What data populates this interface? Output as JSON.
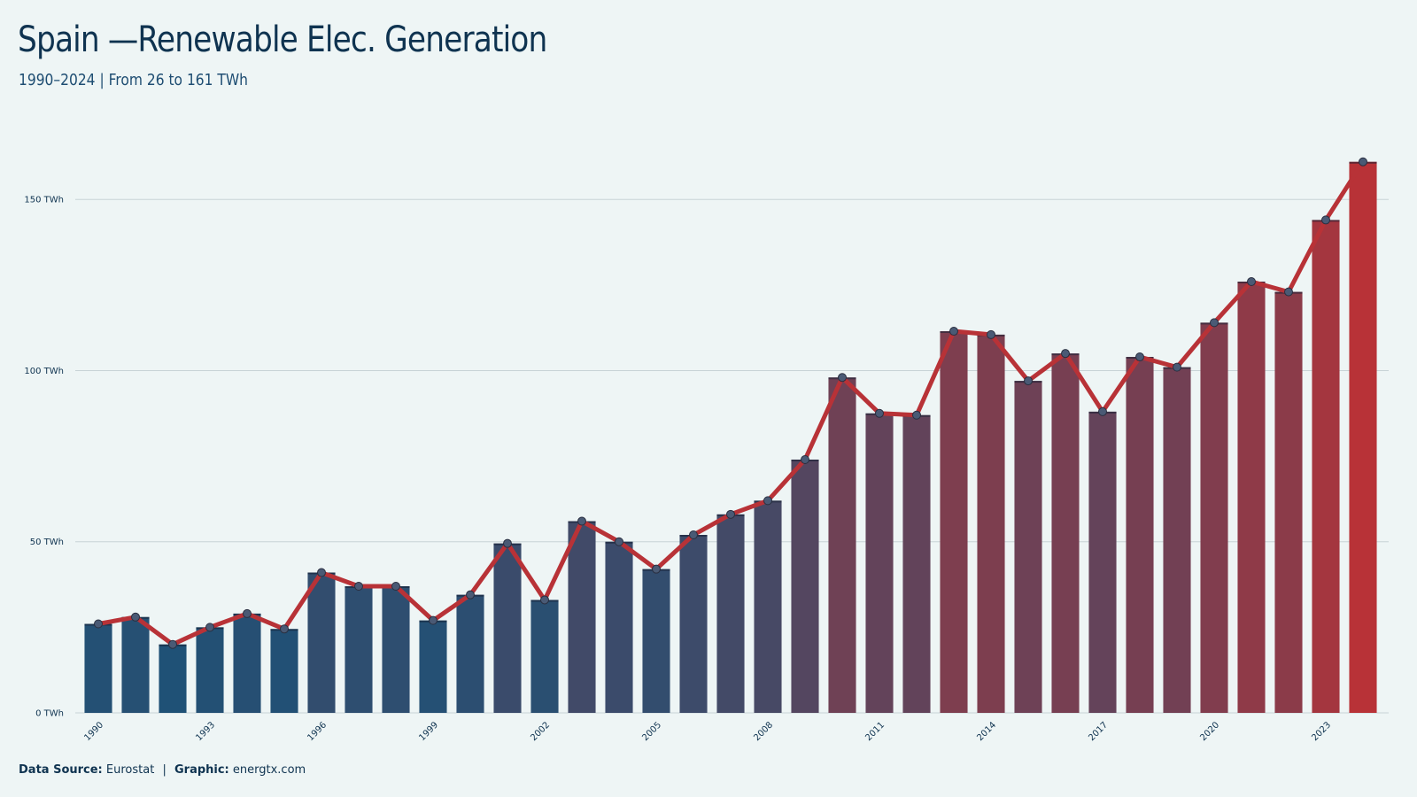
{
  "title": "Spain —Renewable Elec. Generation",
  "subtitle": "1990–2024 | From 26 to 161 TWh",
  "footer": {
    "source_label": "Data Source:",
    "source_value": "Eurostat",
    "separator": "|",
    "graphic_label": "Graphic:",
    "graphic_value": "energtx.com"
  },
  "colors": {
    "background": "#eef5f5",
    "line": "#b83237",
    "bar_low": "#1f5176",
    "bar_high": "#b83237",
    "grid": "#c8d3d6",
    "marker": "#4a5a75"
  },
  "chart_data": {
    "type": "bar",
    "overlay": "line with markers",
    "unit": "TWh",
    "x": [
      1990,
      1991,
      1992,
      1993,
      1994,
      1995,
      1996,
      1997,
      1998,
      1999,
      2000,
      2001,
      2002,
      2003,
      2004,
      2005,
      2006,
      2007,
      2008,
      2009,
      2010,
      2011,
      2012,
      2013,
      2014,
      2015,
      2016,
      2017,
      2018,
      2019,
      2020,
      2021,
      2022,
      2023,
      2024
    ],
    "values": [
      26,
      28,
      20,
      25,
      29,
      24.5,
      41,
      37,
      37,
      27,
      34.5,
      49.5,
      33,
      56,
      50,
      42,
      52,
      58,
      62,
      74,
      98,
      87.5,
      87,
      111.5,
      110.5,
      97,
      105,
      88,
      104,
      101,
      114,
      126,
      123,
      144,
      161
    ],
    "x_tick_labels": [
      "1990",
      "1993",
      "1996",
      "1999",
      "2002",
      "2005",
      "2008",
      "2011",
      "2014",
      "2017",
      "2020",
      "2023"
    ],
    "y_ticks": [
      "0 TWh",
      "50 TWh",
      "100 TWh",
      "150 TWh"
    ],
    "y_tick_values": [
      0,
      50,
      100,
      150
    ],
    "ylim": [
      0,
      163
    ],
    "grid": "horizontal",
    "legend": "none"
  }
}
